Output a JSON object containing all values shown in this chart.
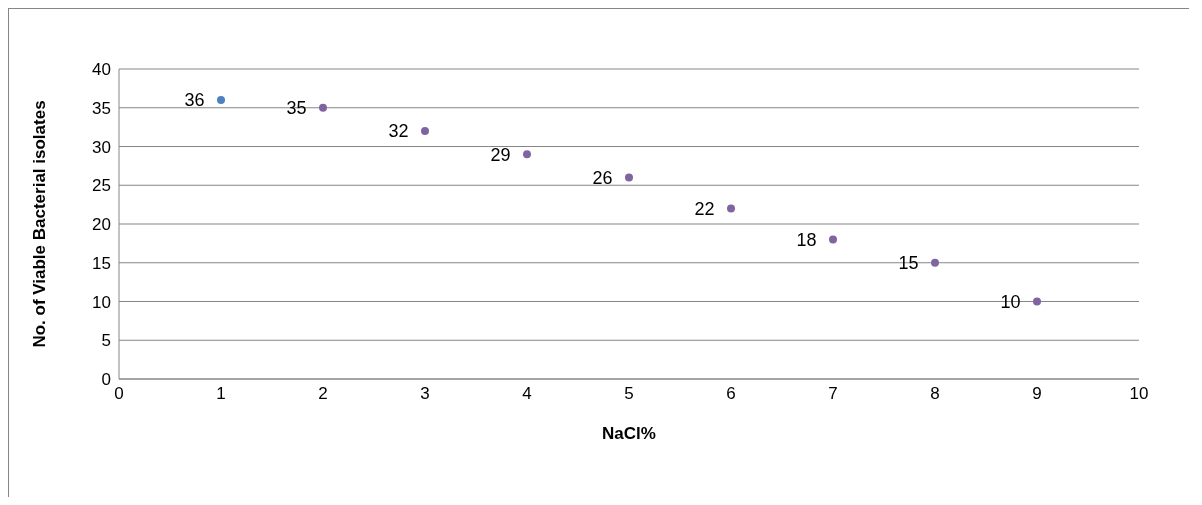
{
  "chart_data": {
    "type": "scatter",
    "xlabel": "NaCl%",
    "ylabel": "No. of Viable Bacterial isolates",
    "x": [
      1,
      2,
      3,
      4,
      5,
      6,
      7,
      8,
      9
    ],
    "values": [
      36,
      35,
      32,
      29,
      26,
      22,
      18,
      15,
      10
    ],
    "colors": [
      "#4f81bd",
      "#8064a2",
      "#8064a2",
      "#8064a2",
      "#8064a2",
      "#8064a2",
      "#8064a2",
      "#8064a2",
      "#8064a2"
    ],
    "xlim": [
      0,
      10
    ],
    "xticks": [
      0,
      1,
      2,
      3,
      4,
      5,
      6,
      7,
      8,
      9,
      10
    ],
    "ylim": [
      0,
      40
    ],
    "yticks": [
      0,
      5,
      10,
      15,
      20,
      25,
      30,
      35,
      40
    ],
    "grid": "y",
    "marker": "circle",
    "data_labels": true
  }
}
